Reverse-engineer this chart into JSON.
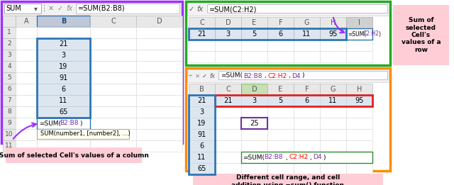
{
  "purple_border": "#9B30FF",
  "green_border": "#22AA22",
  "orange_border": "#FF8C00",
  "cell_bg_blue": "#dce6f1",
  "header_bg": "#e8e8e8",
  "col_values": [
    21,
    3,
    19,
    91,
    6,
    11,
    65
  ],
  "row_values": [
    21,
    3,
    5,
    6,
    11,
    95
  ],
  "formula_bar_left": "=SUM(B2:B8)",
  "formula_bar_green": "=SUM(C2:H2)",
  "formula_bar_orange": "=SUM(B2:B8,C2:H2,D4)",
  "label_left": "Sum of selected Cell's values of a column",
  "label_right_top": "Sum of\nselected\nCell's\nvalues of a\nrow",
  "label_right_bot": "Different cell range, and cell\naddition using =sum() function",
  "tooltip": "SUM(number1, [number2], ...)",
  "name_box": "SUM"
}
